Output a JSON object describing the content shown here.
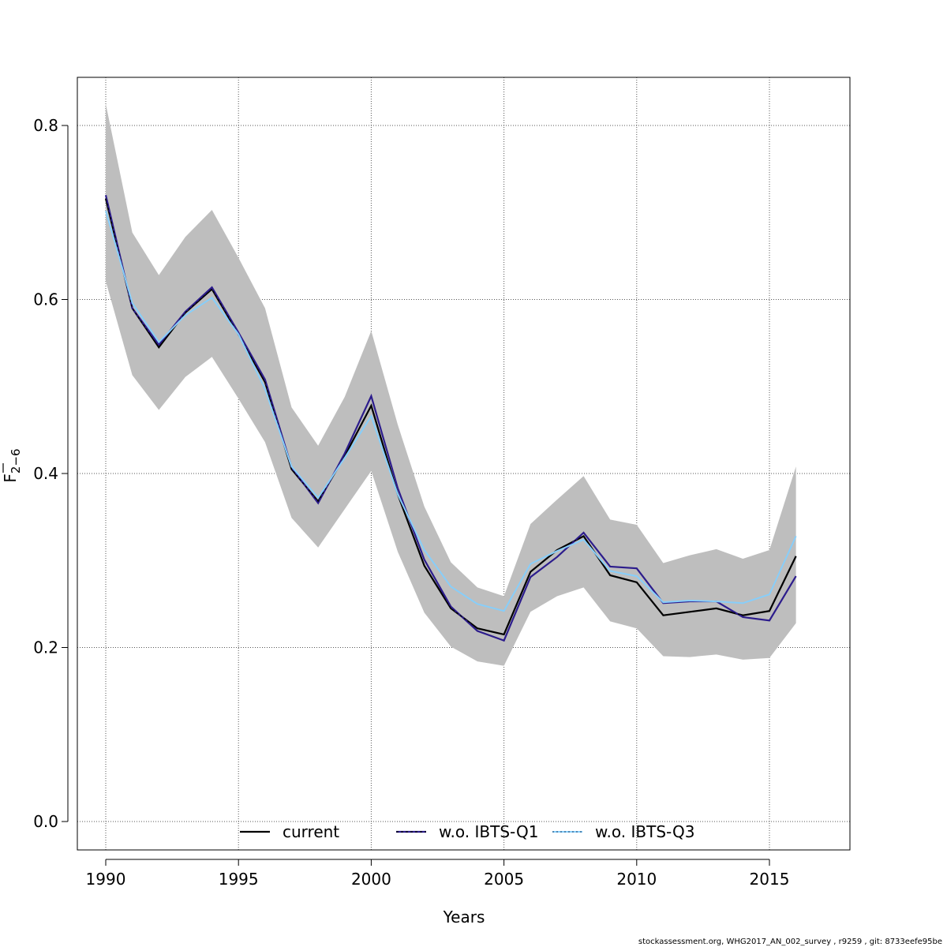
{
  "chart_data": {
    "type": "line",
    "xlabel": "Years",
    "ylabel": "F",
    "ylabel_subscript": "2−6",
    "xlim": [
      1989,
      2018
    ],
    "ylim": [
      -0.03,
      0.855
    ],
    "x_ticks": [
      1990,
      1995,
      2000,
      2005,
      2010,
      2015
    ],
    "x_tick_labels": [
      "1990",
      "1995",
      "2000",
      "2005",
      "2010",
      "2015"
    ],
    "y_ticks": [
      0.0,
      0.2,
      0.4,
      0.6,
      0.8
    ],
    "y_tick_labels": [
      "0.0",
      "0.2",
      "0.4",
      "0.6",
      "0.8"
    ],
    "grid": true,
    "legend_position": "bottom",
    "x": [
      1990,
      1991,
      1992,
      1993,
      1994,
      1995,
      1996,
      1997,
      1998,
      1999,
      2000,
      2001,
      2002,
      2003,
      2004,
      2005,
      2006,
      2007,
      2008,
      2009,
      2010,
      2011,
      2012,
      2013,
      2014,
      2015,
      2016
    ],
    "band": {
      "name": "confidence interval",
      "color": "#bebebe",
      "upper": [
        0.825,
        0.677,
        0.628,
        0.672,
        0.703,
        0.648,
        0.59,
        0.476,
        0.432,
        0.488,
        0.564,
        0.456,
        0.362,
        0.298,
        0.269,
        0.259,
        0.342,
        0.37,
        0.397,
        0.347,
        0.341,
        0.297,
        0.306,
        0.313,
        0.302,
        0.312,
        0.408
      ],
      "lower": [
        0.621,
        0.513,
        0.473,
        0.511,
        0.534,
        0.486,
        0.436,
        0.349,
        0.315,
        0.359,
        0.403,
        0.31,
        0.24,
        0.201,
        0.184,
        0.179,
        0.241,
        0.259,
        0.269,
        0.23,
        0.222,
        0.19,
        0.189,
        0.192,
        0.186,
        0.188,
        0.228
      ]
    },
    "series": [
      {
        "name": "current",
        "color": "#000000",
        "dash": "solid",
        "values": [
          0.716,
          0.59,
          0.545,
          0.585,
          0.612,
          0.56,
          0.505,
          0.405,
          0.368,
          0.42,
          0.478,
          0.376,
          0.294,
          0.245,
          0.222,
          0.215,
          0.287,
          0.312,
          0.328,
          0.283,
          0.275,
          0.237,
          0.241,
          0.245,
          0.237,
          0.242,
          0.305
        ]
      },
      {
        "name": "w.o. IBTS-Q1",
        "color": "#2c1c8c",
        "dash": "solid",
        "values": [
          0.72,
          0.59,
          0.548,
          0.586,
          0.614,
          0.562,
          0.508,
          0.407,
          0.366,
          0.423,
          0.489,
          0.383,
          0.301,
          0.247,
          0.219,
          0.208,
          0.281,
          0.304,
          0.332,
          0.293,
          0.291,
          0.251,
          0.253,
          0.253,
          0.235,
          0.231,
          0.282
        ]
      },
      {
        "name": "w.o. IBTS-Q3",
        "color": "#87cefa",
        "dash": "solid",
        "values": [
          0.702,
          0.596,
          0.551,
          0.582,
          0.602,
          0.56,
          0.497,
          0.408,
          0.372,
          0.418,
          0.466,
          0.376,
          0.312,
          0.27,
          0.25,
          0.242,
          0.296,
          0.311,
          0.324,
          0.288,
          0.282,
          0.252,
          0.254,
          0.253,
          0.251,
          0.261,
          0.328
        ]
      }
    ],
    "legend": [
      {
        "label": "current",
        "style": "current"
      },
      {
        "label": "w.o. IBTS-Q1",
        "style": "q1"
      },
      {
        "label": "w.o. IBTS-Q3",
        "style": "q3"
      }
    ]
  },
  "footer_text": "stockassessment.org, WHG2017_AN_002_survey , r9259 , git: 8733eefe95be"
}
